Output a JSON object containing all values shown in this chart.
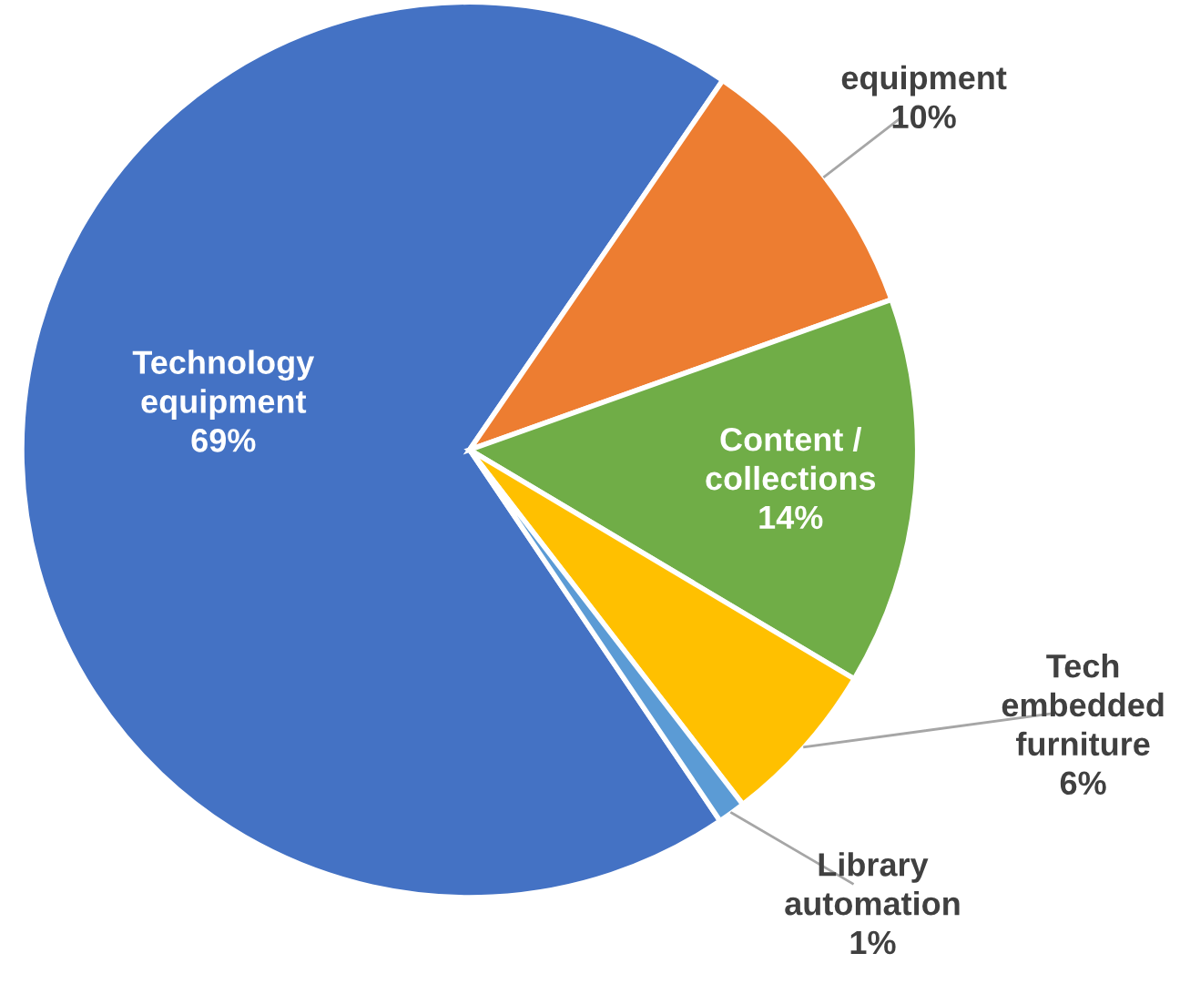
{
  "chart_data": {
    "type": "pie",
    "categories": [
      "Technology equipment",
      "equipment",
      "Content / collections",
      "Tech embedded furniture",
      "Library automation"
    ],
    "values": [
      69,
      10,
      14,
      6,
      1
    ],
    "value_labels": [
      "69%",
      "10%",
      "14%",
      "6%",
      "1%"
    ],
    "colors": [
      "#4472c4",
      "#ed7d31",
      "#70ad47",
      "#ffc000",
      "#5b9bd5"
    ]
  }
}
